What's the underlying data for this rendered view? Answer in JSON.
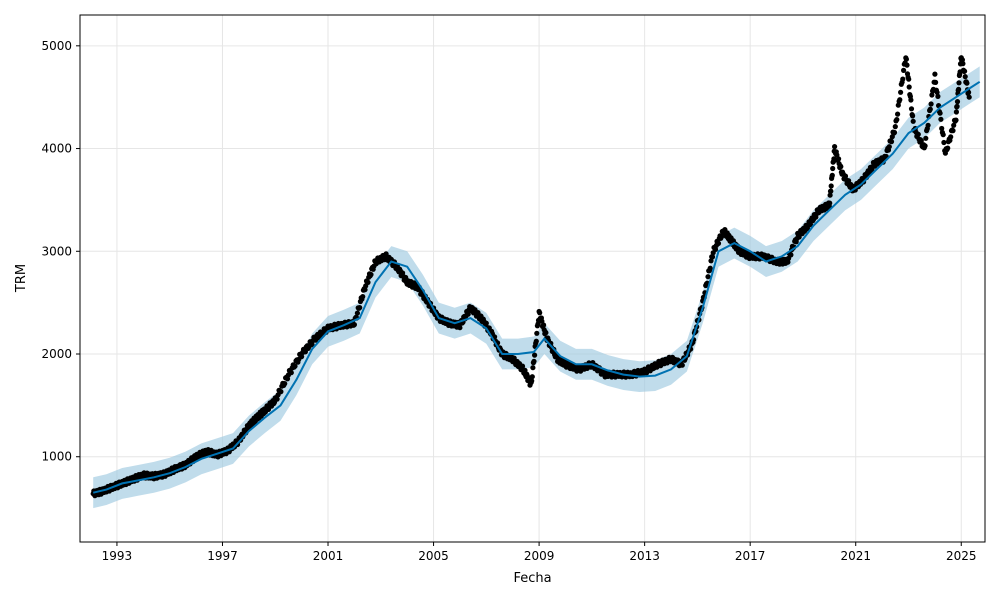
{
  "chart_data": {
    "type": "line",
    "title": "",
    "xlabel": "Fecha",
    "ylabel": "TRM",
    "xlim": [
      1991.6,
      2025.9
    ],
    "ylim": [
      170,
      5300
    ],
    "x_ticks": [
      1993,
      1997,
      2001,
      2005,
      2009,
      2013,
      2017,
      2021,
      2025
    ],
    "y_ticks": [
      1000,
      2000,
      3000,
      4000,
      5000
    ],
    "grid": true,
    "legend": "none",
    "colors": {
      "observed": "#000000",
      "forecast": "#0072B2",
      "interval": "#9ecae1",
      "grid": "#e6e6e6"
    },
    "series": [
      {
        "role": "observed",
        "marker": "dot",
        "x": [
          1992.1,
          1992.4,
          1992.8,
          1993.2,
          1993.6,
          1994.0,
          1994.4,
          1994.8,
          1995.2,
          1995.6,
          1996.0,
          1996.4,
          1996.8,
          1997.2,
          1997.6,
          1998.0,
          1998.3,
          1998.6,
          1999.0,
          1999.5,
          2000.0,
          2000.5,
          2001.0,
          2001.5,
          2002.0,
          2002.4,
          2002.8,
          2003.2,
          2003.6,
          2004.0,
          2004.4,
          2004.8,
          2005.2,
          2005.6,
          2006.0,
          2006.4,
          2006.8,
          2007.2,
          2007.6,
          2008.0,
          2008.4,
          2008.7,
          2009.0,
          2009.3,
          2009.7,
          2010.0,
          2010.5,
          2011.0,
          2011.5,
          2012.0,
          2012.5,
          2013.0,
          2013.5,
          2014.0,
          2014.4,
          2014.8,
          2015.2,
          2015.6,
          2016.0,
          2016.3,
          2016.6,
          2017.0,
          2017.5,
          2018.0,
          2018.4,
          2018.8,
          2019.2,
          2019.6,
          2020.0,
          2020.2,
          2020.5,
          2020.9,
          2021.3,
          2021.7,
          2022.1,
          2022.5,
          2022.9,
          2023.2,
          2023.6,
          2024.0,
          2024.4,
          2024.8,
          2025.0,
          2025.3
        ],
        "y": [
          640,
          660,
          700,
          740,
          780,
          820,
          810,
          830,
          880,
          920,
          1000,
          1050,
          1020,
          1060,
          1150,
          1300,
          1380,
          1450,
          1550,
          1800,
          2000,
          2150,
          2250,
          2280,
          2300,
          2650,
          2900,
          2950,
          2850,
          2700,
          2650,
          2500,
          2350,
          2300,
          2280,
          2450,
          2350,
          2200,
          2000,
          1950,
          1850,
          1700,
          2400,
          2150,
          1950,
          1900,
          1850,
          1900,
          1800,
          1800,
          1800,
          1830,
          1900,
          1950,
          1900,
          2100,
          2500,
          3000,
          3200,
          3100,
          3000,
          2950,
          2950,
          2900,
          2900,
          3150,
          3250,
          3400,
          3450,
          4000,
          3750,
          3600,
          3700,
          3850,
          3900,
          4200,
          4900,
          4200,
          4000,
          4700,
          3950,
          4300,
          4900,
          4500
        ]
      },
      {
        "role": "forecast",
        "x": [
          1992.1,
          1992.6,
          1993.2,
          1993.8,
          1994.4,
          1995.0,
          1995.6,
          1996.2,
          1996.8,
          1997.4,
          1998.0,
          1998.6,
          1999.2,
          1999.8,
          2000.4,
          2001.0,
          2001.6,
          2002.2,
          2002.8,
          2003.4,
          2004.0,
          2004.6,
          2005.2,
          2005.8,
          2006.4,
          2007.0,
          2007.6,
          2008.2,
          2008.8,
          2009.2,
          2009.8,
          2010.4,
          2011.0,
          2011.6,
          2012.2,
          2012.8,
          2013.4,
          2014.0,
          2014.6,
          2015.2,
          2015.8,
          2016.4,
          2017.0,
          2017.6,
          2018.2,
          2018.8,
          2019.4,
          2020.0,
          2020.6,
          2021.2,
          2021.8,
          2022.4,
          2023.0,
          2023.6,
          2024.2,
          2024.8,
          2025.4,
          2025.7
        ],
        "y": [
          650,
          680,
          740,
          770,
          800,
          840,
          900,
          980,
          1030,
          1080,
          1250,
          1380,
          1500,
          1750,
          2050,
          2220,
          2280,
          2350,
          2700,
          2900,
          2850,
          2620,
          2350,
          2300,
          2350,
          2250,
          2000,
          2000,
          2020,
          2150,
          1980,
          1900,
          1900,
          1840,
          1800,
          1780,
          1790,
          1850,
          1980,
          2450,
          3000,
          3080,
          3000,
          2900,
          2950,
          3050,
          3250,
          3400,
          3550,
          3650,
          3800,
          3950,
          4150,
          4250,
          4400,
          4500,
          4600,
          4650
        ],
        "lower": [
          500,
          530,
          590,
          620,
          650,
          690,
          750,
          830,
          880,
          930,
          1100,
          1230,
          1350,
          1600,
          1900,
          2070,
          2130,
          2200,
          2550,
          2750,
          2700,
          2470,
          2200,
          2150,
          2200,
          2100,
          1850,
          1850,
          1870,
          2000,
          1830,
          1750,
          1750,
          1690,
          1650,
          1630,
          1640,
          1700,
          1830,
          2300,
          2850,
          2930,
          2850,
          2750,
          2800,
          2900,
          3100,
          3250,
          3400,
          3500,
          3650,
          3800,
          4000,
          4100,
          4250,
          4350,
          4450,
          4500
        ],
        "upper": [
          800,
          830,
          890,
          920,
          950,
          990,
          1050,
          1130,
          1180,
          1230,
          1400,
          1530,
          1650,
          1900,
          2200,
          2370,
          2430,
          2500,
          2850,
          3050,
          3000,
          2770,
          2500,
          2450,
          2500,
          2400,
          2150,
          2150,
          2170,
          2300,
          2130,
          2050,
          2050,
          1990,
          1950,
          1930,
          1940,
          2000,
          2130,
          2600,
          3150,
          3230,
          3150,
          3050,
          3100,
          3200,
          3400,
          3550,
          3700,
          3800,
          3950,
          4100,
          4300,
          4400,
          4550,
          4650,
          4750,
          4800
        ]
      }
    ]
  }
}
